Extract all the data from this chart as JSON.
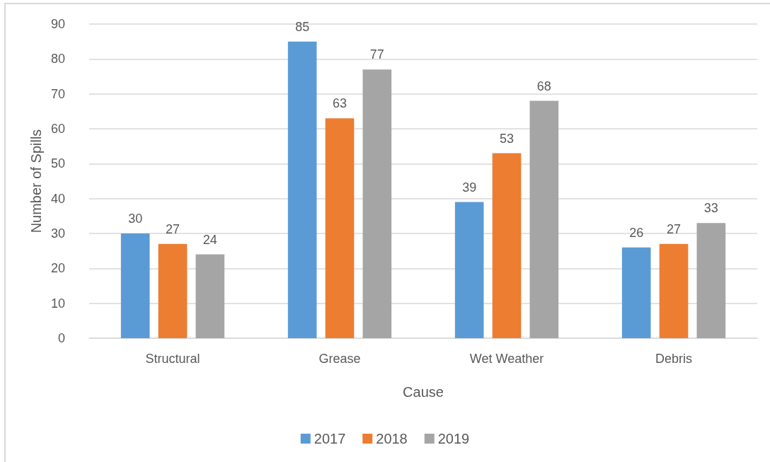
{
  "chart_data": {
    "type": "bar",
    "xlabel": "Cause",
    "ylabel": "Number of Spills",
    "categories": [
      "Structural",
      "Grease",
      "Wet Weather",
      "Debris"
    ],
    "series": [
      {
        "name": "2017",
        "color": "#5b9bd5",
        "values": [
          30,
          85,
          39,
          26
        ]
      },
      {
        "name": "2018",
        "color": "#ed7d31",
        "values": [
          27,
          63,
          53,
          27
        ]
      },
      {
        "name": "2019",
        "color": "#a5a5a5",
        "values": [
          24,
          77,
          68,
          33
        ]
      }
    ],
    "ylim": [
      0,
      90
    ],
    "yticks": [
      0,
      10,
      20,
      30,
      40,
      50,
      60,
      70,
      80,
      90
    ],
    "grid": "y",
    "legend": "bottom",
    "data_labels": true
  }
}
